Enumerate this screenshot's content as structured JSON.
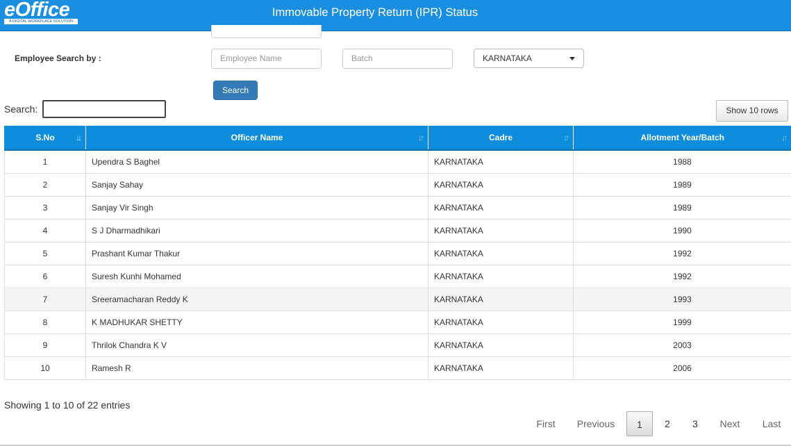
{
  "header": {
    "logo_text": "eOffice",
    "logo_tagline": "A DIGITAL WORKPLACE SOLUTION",
    "title": "Immovable Property Return (IPR) Status"
  },
  "filters": {
    "label": "Employee Search by :",
    "employee_name_placeholder": "Employee Name",
    "batch_placeholder": "Batch",
    "state_selected": "KARNATAKA",
    "search_button": "Search"
  },
  "table_controls": {
    "search_label": "Search:",
    "search_value": "",
    "show_rows_button": "Show 10 rows"
  },
  "table": {
    "columns": [
      "S.No",
      "Officer Name",
      "Cadre",
      "Allotment Year/Batch"
    ],
    "rows": [
      [
        "1",
        "Upendra S Baghel",
        "KARNATAKA",
        "1988"
      ],
      [
        "2",
        "Sanjay Sahay",
        "KARNATAKA",
        "1989"
      ],
      [
        "3",
        "Sanjay Vir Singh",
        "KARNATAKA",
        "1989"
      ],
      [
        "4",
        "S J Dharmadhikari",
        "KARNATAKA",
        "1990"
      ],
      [
        "5",
        "Prashant Kumar Thakur",
        "KARNATAKA",
        "1992"
      ],
      [
        "6",
        "Suresh Kunhi Mohamed",
        "KARNATAKA",
        "1992"
      ],
      [
        "7",
        "Sreeramacharan Reddy K",
        "KARNATAKA",
        "1993"
      ],
      [
        "8",
        "K MADHUKAR SHETTY",
        "KARNATAKA",
        "1999"
      ],
      [
        "9",
        "Thrilok Chandra K V",
        "KARNATAKA",
        "2003"
      ],
      [
        "10",
        "Ramesh R",
        "KARNATAKA",
        "2006"
      ]
    ]
  },
  "footer": {
    "info": "Showing 1 to 10 of 22 entries",
    "pagination": {
      "first": "First",
      "previous": "Previous",
      "pages": [
        "1",
        "2",
        "3"
      ],
      "next": "Next",
      "last": "Last"
    }
  },
  "colors": {
    "header_bg": "#1a8ee0",
    "table_header_bg": "#0d8ddb",
    "primary_button": "#337ab7"
  },
  "icons": {
    "sort": "sort-icon",
    "dropdown": "chevron-down-icon"
  }
}
